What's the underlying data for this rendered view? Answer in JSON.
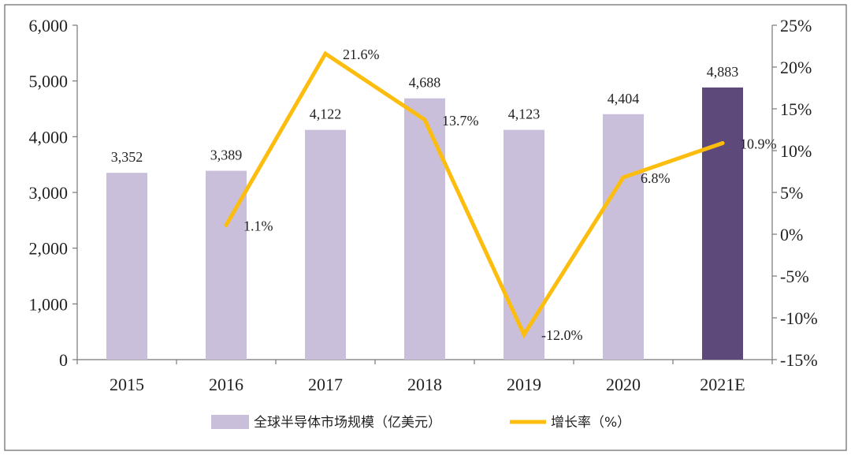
{
  "chart_data": {
    "type": "bar",
    "categories": [
      "2015",
      "2016",
      "2017",
      "2018",
      "2019",
      "2020",
      "2021E"
    ],
    "series": [
      {
        "name": "全球半导体市场规模（亿美元）",
        "kind": "bar",
        "axis": "left",
        "values": [
          3352,
          3389,
          4122,
          4688,
          4123,
          4404,
          4883
        ],
        "labels": [
          "3,352",
          "3,389",
          "4,122",
          "4,688",
          "4,123",
          "4,404",
          "4,883"
        ],
        "color": "#c9bfdb",
        "highlight_color": "#5e4a7a",
        "highlight_index": 6
      },
      {
        "name": "增长率（%）",
        "kind": "line",
        "axis": "right",
        "values": [
          null,
          1.1,
          21.6,
          13.7,
          -12.0,
          6.8,
          10.9
        ],
        "labels": [
          "",
          "1.1%",
          "21.6%",
          "13.7%",
          "-12.0%",
          "6.8%",
          "10.9%"
        ],
        "color": "#fcbd0e"
      }
    ],
    "y_left": {
      "ylim": [
        0,
        6000
      ],
      "ticks": [
        0,
        1000,
        2000,
        3000,
        4000,
        5000,
        6000
      ],
      "tick_labels": [
        "0",
        "1,000",
        "2,000",
        "3,000",
        "4,000",
        "5,000",
        "6,000"
      ]
    },
    "y_right": {
      "ylim": [
        -15,
        25
      ],
      "ticks": [
        -15,
        -10,
        -5,
        0,
        5,
        10,
        15,
        20,
        25
      ],
      "tick_labels": [
        "-15%",
        "-10%",
        "-5%",
        "0%",
        "5%",
        "10%",
        "15%",
        "20%",
        "25%"
      ]
    },
    "grid": false,
    "legend": "bottom",
    "title": "",
    "xlabel": "",
    "ylabel": ""
  }
}
